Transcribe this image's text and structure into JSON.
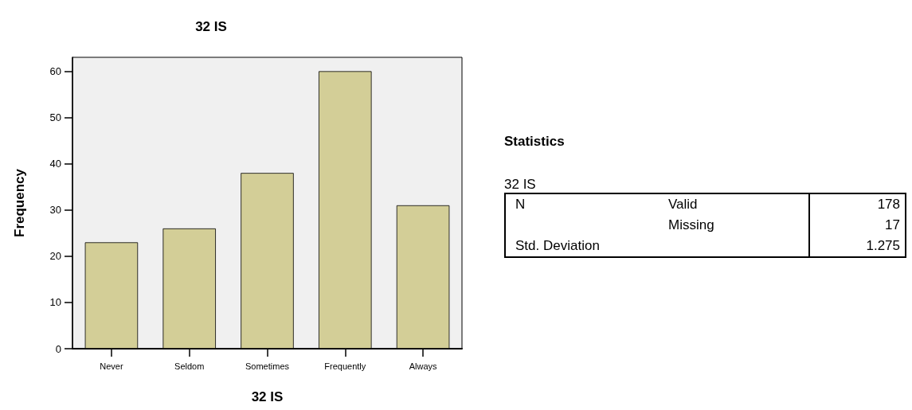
{
  "chart_data": [
    {
      "type": "bar",
      "title": "32 IS",
      "xlabel": "32 IS",
      "ylabel": "Frequency",
      "categories": [
        "Never",
        "Seldom",
        "Sometimes",
        "Frequently",
        "Always"
      ],
      "values": [
        23,
        26,
        38,
        60,
        31
      ],
      "color": "#d3ce97",
      "ylim": [
        0,
        63
      ],
      "yticks": [
        0,
        10,
        20,
        30,
        40,
        50,
        60
      ],
      "grid": false
    },
    {
      "type": "other",
      "title": "Statistics",
      "subtitle": "32 IS",
      "annotations": [
        "N",
        "Valid",
        "178",
        "Missing",
        "17",
        "Std. Deviation",
        "1.275"
      ]
    }
  ]
}
